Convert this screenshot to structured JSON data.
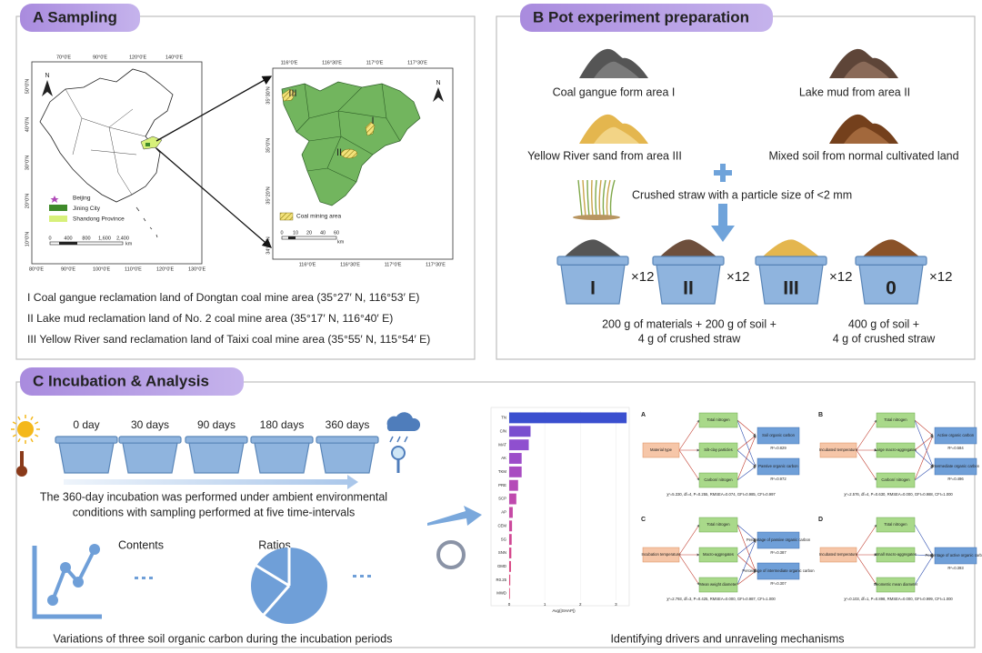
{
  "panel_a": {
    "title": "A  Sampling",
    "china_top": [
      "70°0'E",
      "90°0'E",
      "120°0'E",
      "140°0'E"
    ],
    "china_bottom": [
      "80°0'E",
      "90°0'E",
      "100°0'E",
      "110°0'E",
      "120°0'E",
      "130°0'E"
    ],
    "china_left": [
      "50°0'N",
      "40°0'N",
      "30°0'N",
      "20°0'N",
      "10°0'N"
    ],
    "china_legend": [
      "Beijing",
      "Jining City",
      "Shandong Province"
    ],
    "china_scale": [
      "0",
      "400",
      "800",
      "1,600",
      "2,400"
    ],
    "scale_unit": "km",
    "north": "N",
    "inset_top": [
      "116°0'E",
      "116°30'E",
      "117°0'E",
      "117°30'E"
    ],
    "inset_bottom": [
      "116°0'E",
      "116°30'E",
      "117°0'E",
      "117°30'E"
    ],
    "inset_left": [
      "35°30'N",
      "35°0'N",
      "35°20'N",
      "34°30'N"
    ],
    "inset_legend": "Coal mining area",
    "inset_scale": [
      "0",
      "10",
      "20",
      "40",
      "60"
    ],
    "areas": [
      "I",
      "II",
      "III"
    ],
    "lines": [
      "I Coal gangue reclamation land of Dongtan coal mine area  (35°27′ N, 116°53′ E)",
      "II Lake mud reclamation land of  No. 2 coal mine area (35°17′ N, 116°40′ E)",
      "III Yellow River sand reclamation land of Taixi coal mine area (35°55′ N, 115°54′ E)"
    ]
  },
  "panel_b": {
    "title": "B  Pot experiment preparation",
    "materials": [
      "Coal gangue form area I",
      "Lake mud from area II",
      "Yellow River sand from area III",
      "Mixed soil from normal cultivated land"
    ],
    "straw": "Crushed straw with a particle size of <2 mm",
    "pots": [
      "I",
      "II",
      "III",
      "0"
    ],
    "multiplier": "×12",
    "recipe_treatment": [
      "200 g of materials + 200 g of soil +",
      "4 g of crushed straw"
    ],
    "recipe_control": [
      "400 g of soil +",
      "4 g of crushed straw"
    ]
  },
  "panel_c": {
    "title": "C  Incubation & Analysis",
    "days": [
      "0 day",
      "30 days",
      "90 days",
      "180 days",
      "360 days"
    ],
    "description": [
      "The 360-day incubation was performed under ambient environmental",
      "conditions with sampling performed at five time-intervals"
    ],
    "contents": "Contents",
    "ratios": "Ratios",
    "caption_left": "Variations of three soil organic carbon during the incubation periods",
    "caption_right": "Identifying drivers and unraveling mechanisms",
    "shap": {
      "labels": [
        "TN",
        "C/N",
        "MAT",
        "AK",
        "TKM",
        "PRE",
        "SCP",
        "AP",
        "CEM",
        "SG",
        "SNN",
        "GMD",
        "R0.25",
        "MWD"
      ],
      "values": [
        3.3,
        0.6,
        0.55,
        0.35,
        0.35,
        0.25,
        0.2,
        0.1,
        0.08,
        0.07,
        0.06,
        0.05,
        0.03,
        0.02
      ],
      "xlim": [
        0,
        3.5
      ],
      "xticks": [
        0,
        1,
        2,
        3
      ],
      "xlabel": "Avg(|SHAP|)"
    },
    "sem": [
      {
        "letter": "A",
        "input": "Material type",
        "mediators": [
          "Total nitrogen",
          "Silt-clay particles",
          "Carbon/ nitrogen"
        ],
        "outcomes": [
          "Soil organic carbon",
          "Passive organic carbon"
        ],
        "r2": [
          "R²=0.829",
          "R²=0.972"
        ],
        "fit": "χ²=5.330, df=4, P=0.255, RMSEA=0.074, GFI=0.985, CFI=0.997"
      },
      {
        "letter": "B",
        "input": "Incubated temperature",
        "mediators": [
          "Total nitrogen",
          "Large macro-aggregates",
          "Carbon/ nitrogen"
        ],
        "outcomes": [
          "Active organic carbon",
          "Intermediate organic carbon"
        ],
        "r2": [
          "R²=0.584",
          "R²=0.496"
        ],
        "fit": "χ²=2.576, df=4, P=0.630, RMSEA=0.000, GFI=0.988, CFI=1.000"
      },
      {
        "letter": "C",
        "input": "Incubation temperature",
        "mediators": [
          "Total nitrogen",
          "Macro-aggregates",
          "Mean weight diameter"
        ],
        "outcomes": [
          "Percentage of passive organic carbon",
          "Percentage of intermediate organic carbon"
        ],
        "r2": [
          "R²=0.387",
          "R²=0.307"
        ],
        "fit": "χ²=2.793, df=3, P=0.425, RMSEA=0.000, GFI=0.987, CFI=1.000"
      },
      {
        "letter": "D",
        "input": "Incubated temperature",
        "mediators": [
          "Total nitrogen",
          "Small macro-aggregates",
          "Geometric mean diameter"
        ],
        "outcomes": [
          "Percentage of active organic carbon"
        ],
        "r2": [
          "R²=0.393"
        ],
        "fit": "χ²=0.103, df=1, P=0.898, RMSEA=0.000, GFI=0.999, CFI=1.000"
      }
    ]
  }
}
